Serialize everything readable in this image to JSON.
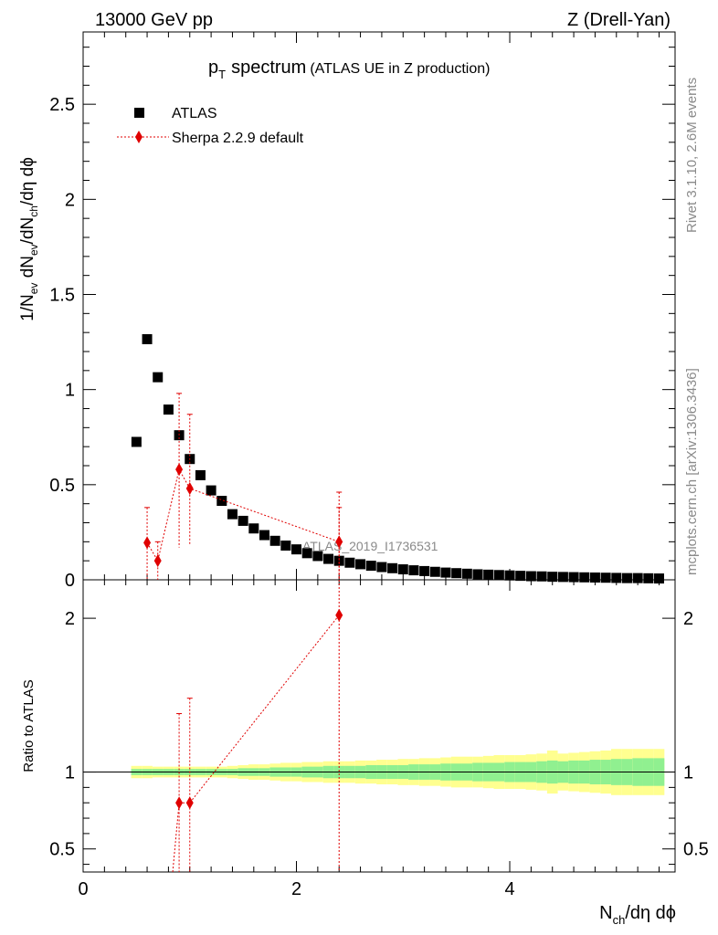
{
  "header": {
    "energy_label": "13000 GeV pp",
    "process_label": "Z (Drell-Yan)"
  },
  "side_text": {
    "rivet": "Rivet 3.1.10,  2.6M events",
    "mcplots": "mcplots.cern.ch [arXiv:1306.3436]"
  },
  "colors": {
    "data": "#000000",
    "mc": "#e00000",
    "band_inner": "#90f090",
    "band_outer": "#ffff90"
  },
  "chart_data": [
    {
      "type": "scatter",
      "panel": "main",
      "title": {
        "p": "p",
        "sub": "T",
        "word": "spectrum",
        "note": "(ATLAS UE in Z production)"
      },
      "ylabel": {
        "a": "1/N",
        "a_sub": "ev",
        "b": " dN",
        "b_sub": "ev",
        "c": "/dN",
        "c_sub": "ch",
        "d": "/dη dϕ"
      },
      "watermark": "ATLAS_2019_I1736531",
      "xlim": [
        0,
        5.55
      ],
      "ylim": [
        0,
        2.88
      ],
      "yticks": [
        0,
        0.5,
        1,
        1.5,
        2,
        2.5
      ],
      "ytick_labels": [
        "0",
        "0.5",
        "1",
        "1.5",
        "2",
        "2.5"
      ],
      "legend": {
        "position": "top-left",
        "entries": [
          "ATLAS",
          "Sherpa 2.2.9 default"
        ]
      },
      "series": [
        {
          "name": "ATLAS",
          "marker": "square",
          "x": [
            0.5,
            0.6,
            0.7,
            0.8,
            0.9,
            1.0,
            1.1,
            1.2,
            1.3,
            1.4,
            1.5,
            1.6,
            1.7,
            1.8,
            1.9,
            2.0,
            2.1,
            2.2,
            2.3,
            2.4,
            2.5,
            2.6,
            2.7,
            2.8,
            2.9,
            3.0,
            3.1,
            3.2,
            3.3,
            3.4,
            3.5,
            3.6,
            3.7,
            3.8,
            3.9,
            4.0,
            4.1,
            4.2,
            4.3,
            4.4,
            4.5,
            4.6,
            4.7,
            4.8,
            4.9,
            5.0,
            5.1,
            5.2,
            5.3,
            5.4
          ],
          "y": [
            0.725,
            1.265,
            1.065,
            0.895,
            0.76,
            0.635,
            0.55,
            0.47,
            0.415,
            0.345,
            0.31,
            0.27,
            0.235,
            0.205,
            0.18,
            0.16,
            0.14,
            0.125,
            0.11,
            0.1,
            0.09,
            0.082,
            0.074,
            0.067,
            0.061,
            0.055,
            0.05,
            0.046,
            0.042,
            0.038,
            0.035,
            0.032,
            0.029,
            0.027,
            0.025,
            0.023,
            0.021,
            0.019,
            0.018,
            0.016,
            0.015,
            0.014,
            0.013,
            0.012,
            0.011,
            0.01,
            0.009,
            0.009,
            0.008,
            0.007
          ]
        },
        {
          "name": "Sherpa 2.2.9 default",
          "marker": "diamond",
          "line": "dotted",
          "x": [
            0.6,
            0.7,
            0.9,
            1.0,
            2.4
          ],
          "y": [
            0.195,
            0.1,
            0.58,
            0.48,
            0.2
          ],
          "err_up": [
            0.185,
            0.1,
            0.4,
            0.39,
            0.18
          ],
          "err_down": [
            0.195,
            0.1,
            0.41,
            0.3,
            0.2
          ]
        }
      ]
    },
    {
      "type": "scatter",
      "panel": "ratio",
      "ylabel": "Ratio to ATLAS",
      "xlabel": {
        "a": "N",
        "a_sub": "ch",
        "b": "/dη dϕ"
      },
      "xlim": [
        0,
        5.55
      ],
      "ylim": [
        0.35,
        2.25
      ],
      "xticks": [
        0,
        2,
        4
      ],
      "xtick_labels": [
        "0",
        "2",
        "4"
      ],
      "yticks": [
        0.5,
        1,
        2
      ],
      "ytick_labels": [
        "0.5",
        "1",
        "2"
      ],
      "reference_line": 1,
      "band": {
        "x_edges": [
          0.45,
          0.55,
          0.65,
          0.75,
          0.85,
          0.95,
          1.05,
          1.15,
          1.25,
          1.35,
          1.45,
          1.55,
          1.65,
          1.75,
          1.85,
          1.95,
          2.05,
          2.15,
          2.25,
          2.35,
          2.45,
          2.55,
          2.65,
          2.75,
          2.85,
          2.95,
          3.05,
          3.15,
          3.25,
          3.35,
          3.45,
          3.55,
          3.65,
          3.75,
          3.85,
          3.95,
          4.05,
          4.15,
          4.25,
          4.35,
          4.45,
          4.55,
          4.65,
          4.75,
          4.85,
          4.95,
          5.05,
          5.15,
          5.25,
          5.35,
          5.45
        ],
        "stat": [
          0.02,
          0.02,
          0.02,
          0.02,
          0.02,
          0.02,
          0.02,
          0.02,
          0.02,
          0.02,
          0.025,
          0.025,
          0.025,
          0.03,
          0.03,
          0.03,
          0.035,
          0.035,
          0.04,
          0.04,
          0.04,
          0.04,
          0.045,
          0.045,
          0.045,
          0.045,
          0.05,
          0.05,
          0.05,
          0.055,
          0.055,
          0.055,
          0.06,
          0.06,
          0.06,
          0.065,
          0.065,
          0.065,
          0.07,
          0.075,
          0.07,
          0.075,
          0.075,
          0.08,
          0.08,
          0.085,
          0.085,
          0.09,
          0.09,
          0.09
        ],
        "total": [
          0.04,
          0.04,
          0.035,
          0.035,
          0.035,
          0.035,
          0.035,
          0.035,
          0.035,
          0.04,
          0.045,
          0.05,
          0.05,
          0.055,
          0.06,
          0.06,
          0.065,
          0.065,
          0.07,
          0.07,
          0.07,
          0.075,
          0.075,
          0.08,
          0.08,
          0.085,
          0.085,
          0.09,
          0.09,
          0.095,
          0.1,
          0.1,
          0.1,
          0.105,
          0.11,
          0.11,
          0.11,
          0.115,
          0.12,
          0.14,
          0.12,
          0.125,
          0.13,
          0.135,
          0.14,
          0.15,
          0.15,
          0.15,
          0.15,
          0.15
        ]
      },
      "series": [
        {
          "name": "Sherpa 2.2.9 default",
          "marker": "diamond",
          "line": "dotted",
          "x": [
            0.9,
            1.0,
            2.4
          ],
          "y": [
            0.8,
            0.8,
            2.02
          ],
          "err_up": [
            0.58,
            0.68,
            0.8
          ],
          "err_down": [
            0.5,
            0.5,
            1.8
          ],
          "offscale_x": [
            0.6,
            0.7
          ]
        }
      ]
    }
  ]
}
